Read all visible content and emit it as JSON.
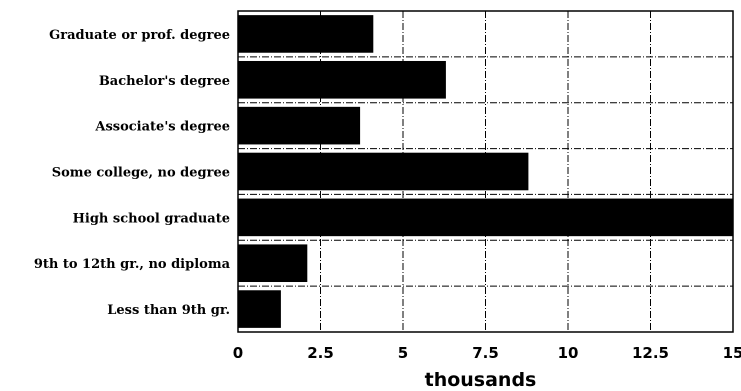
{
  "chart_data": {
    "type": "bar",
    "orientation": "horizontal",
    "categories": [
      "Graduate or prof. degree",
      "Bachelor's degree",
      "Associate's degree",
      "Some college, no degree",
      "High school graduate",
      "9th to 12th gr., no diploma",
      "Less than 9th gr."
    ],
    "values": [
      4.1,
      6.3,
      3.7,
      8.8,
      15.0,
      2.1,
      1.3
    ],
    "xlabel": "thousands",
    "ylabel": "",
    "title": "",
    "xlim": [
      0,
      15
    ],
    "xticks": [
      "0",
      "2.5",
      "5",
      "7.5",
      "10",
      "12.5",
      "15"
    ],
    "grid": true,
    "legend": "none",
    "bar_color": "#000000"
  }
}
